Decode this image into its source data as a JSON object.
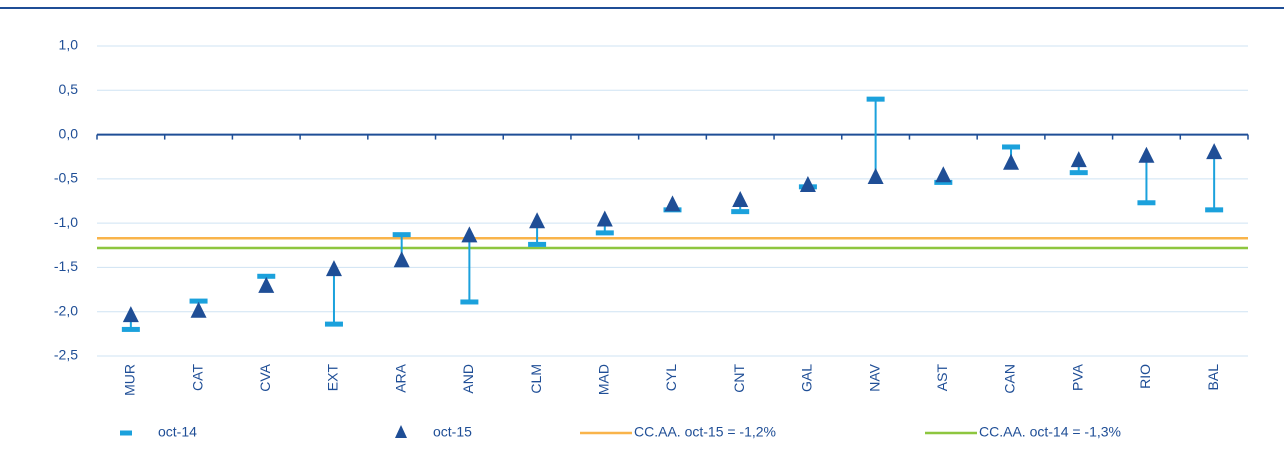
{
  "chart_data": {
    "type": "dot-range",
    "categories": [
      "MUR",
      "CAT",
      "CVA",
      "EXT",
      "ARA",
      "AND",
      "CLM",
      "MAD",
      "CYL",
      "CNT",
      "GAL",
      "NAV",
      "AST",
      "CAN",
      "PVA",
      "RIO",
      "BAL"
    ],
    "series": [
      {
        "name": "oct-14",
        "color": "#1ba1dc",
        "marker": "dash",
        "values": [
          -2.2,
          -1.88,
          -1.6,
          -2.14,
          -1.13,
          -1.89,
          -1.24,
          -1.11,
          -0.85,
          -0.87,
          -0.59,
          0.4,
          -0.54,
          -0.14,
          -0.43,
          -0.77,
          -0.85
        ]
      },
      {
        "name": "oct-15",
        "color": "#1f4e96",
        "marker": "triangle",
        "values": [
          -2.05,
          -2.0,
          -1.72,
          -1.53,
          -1.43,
          -1.15,
          -0.99,
          -0.97,
          -0.8,
          -0.75,
          -0.58,
          -0.49,
          -0.47,
          -0.33,
          -0.3,
          -0.25,
          -0.21
        ]
      }
    ],
    "reference_lines": [
      {
        "name": "CC.AA. oct-15 = -1,2%",
        "value": -1.17,
        "color": "#f9b44a"
      },
      {
        "name": "CC.AA. oct-14 = -1,3%",
        "value": -1.28,
        "color": "#8dc63f"
      }
    ],
    "ylim": [
      -2.5,
      1.0
    ],
    "yticks": [
      {
        "value": 1.0,
        "label": "1,0"
      },
      {
        "value": 0.5,
        "label": "0,5"
      },
      {
        "value": 0,
        "label": "0,0"
      },
      {
        "value": -0.5,
        "label": "-0,5"
      },
      {
        "value": -1.0,
        "label": "-1,0"
      },
      {
        "value": -1.5,
        "label": "-1,5"
      },
      {
        "value": -2.0,
        "label": "-2,0"
      },
      {
        "value": -2.5,
        "label": "-2,5"
      }
    ],
    "grid": true
  }
}
